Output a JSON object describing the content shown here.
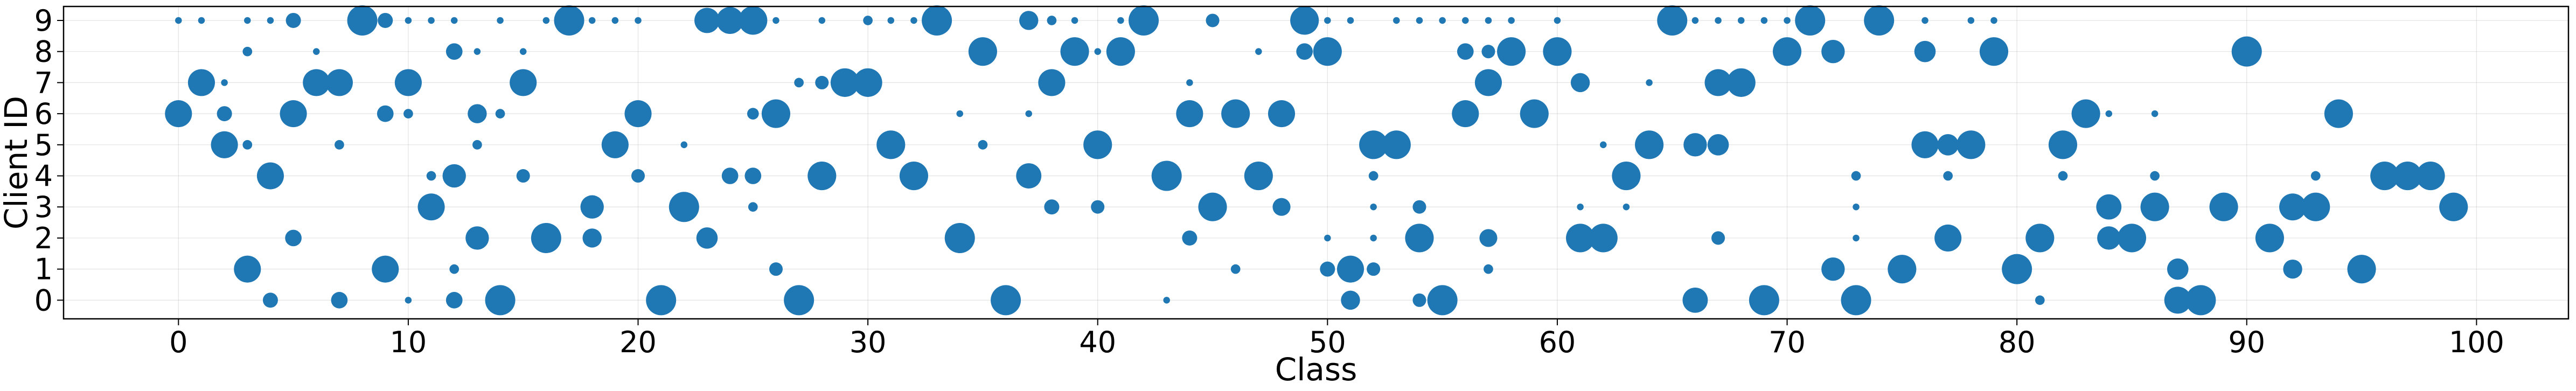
{
  "chart_data": {
    "type": "scatter",
    "title": "",
    "xlabel": "Class",
    "ylabel": "Client ID",
    "xlim": [
      -5,
      104
    ],
    "ylim": [
      -0.6,
      9.45
    ],
    "xticks": [
      0,
      10,
      20,
      30,
      40,
      50,
      60,
      70,
      80,
      90,
      100
    ],
    "yticks": [
      0,
      1,
      2,
      3,
      4,
      5,
      6,
      7,
      8,
      9
    ],
    "grid": true,
    "marker_color": "#1f77b4",
    "size_encoding": "marker area",
    "points": [
      {
        "x": 0,
        "y": 6,
        "s": 0.8
      },
      {
        "x": 0,
        "y": 9,
        "s": 0.05
      },
      {
        "x": 1,
        "y": 7,
        "s": 0.8
      },
      {
        "x": 1,
        "y": 9,
        "s": 0.05
      },
      {
        "x": 2,
        "y": 6,
        "s": 0.25
      },
      {
        "x": 2,
        "y": 5,
        "s": 0.8
      },
      {
        "x": 2,
        "y": 7,
        "s": 0.05
      },
      {
        "x": 3,
        "y": 1,
        "s": 0.8
      },
      {
        "x": 3,
        "y": 5,
        "s": 0.1
      },
      {
        "x": 3,
        "y": 8,
        "s": 0.1
      },
      {
        "x": 3,
        "y": 9,
        "s": 0.05
      },
      {
        "x": 4,
        "y": 4,
        "s": 0.8
      },
      {
        "x": 4,
        "y": 0,
        "s": 0.25
      },
      {
        "x": 4,
        "y": 9,
        "s": 0.05
      },
      {
        "x": 5,
        "y": 6,
        "s": 0.8
      },
      {
        "x": 5,
        "y": 2,
        "s": 0.3
      },
      {
        "x": 5,
        "y": 9,
        "s": 0.25
      },
      {
        "x": 6,
        "y": 7,
        "s": 0.8
      },
      {
        "x": 6,
        "y": 8,
        "s": 0.05
      },
      {
        "x": 7,
        "y": 7,
        "s": 0.8
      },
      {
        "x": 7,
        "y": 0,
        "s": 0.3
      },
      {
        "x": 7,
        "y": 5,
        "s": 0.1
      },
      {
        "x": 8,
        "y": 9,
        "s": 1.0
      },
      {
        "x": 9,
        "y": 1,
        "s": 0.8
      },
      {
        "x": 9,
        "y": 6,
        "s": 0.3
      },
      {
        "x": 9,
        "y": 9,
        "s": 0.25
      },
      {
        "x": 10,
        "y": 7,
        "s": 0.8
      },
      {
        "x": 10,
        "y": 6,
        "s": 0.1
      },
      {
        "x": 10,
        "y": 0,
        "s": 0.05
      },
      {
        "x": 10,
        "y": 9,
        "s": 0.05
      },
      {
        "x": 11,
        "y": 3,
        "s": 0.8
      },
      {
        "x": 11,
        "y": 4,
        "s": 0.1
      },
      {
        "x": 11,
        "y": 9,
        "s": 0.05
      },
      {
        "x": 12,
        "y": 4,
        "s": 0.6
      },
      {
        "x": 12,
        "y": 0,
        "s": 0.3
      },
      {
        "x": 12,
        "y": 8,
        "s": 0.3
      },
      {
        "x": 12,
        "y": 1,
        "s": 0.1
      },
      {
        "x": 12,
        "y": 9,
        "s": 0.05
      },
      {
        "x": 13,
        "y": 6,
        "s": 0.4
      },
      {
        "x": 13,
        "y": 2,
        "s": 0.6
      },
      {
        "x": 13,
        "y": 5,
        "s": 0.1
      },
      {
        "x": 13,
        "y": 8,
        "s": 0.05
      },
      {
        "x": 14,
        "y": 0,
        "s": 1.0
      },
      {
        "x": 14,
        "y": 6,
        "s": 0.1
      },
      {
        "x": 14,
        "y": 9,
        "s": 0.05
      },
      {
        "x": 15,
        "y": 7,
        "s": 0.8
      },
      {
        "x": 15,
        "y": 4,
        "s": 0.2
      },
      {
        "x": 15,
        "y": 8,
        "s": 0.05
      },
      {
        "x": 16,
        "y": 2,
        "s": 1.0
      },
      {
        "x": 16,
        "y": 9,
        "s": 0.05
      },
      {
        "x": 17,
        "y": 9,
        "s": 1.0
      },
      {
        "x": 18,
        "y": 3,
        "s": 0.6
      },
      {
        "x": 18,
        "y": 2,
        "s": 0.4
      },
      {
        "x": 18,
        "y": 9,
        "s": 0.05
      },
      {
        "x": 19,
        "y": 5,
        "s": 0.8
      },
      {
        "x": 19,
        "y": 9,
        "s": 0.05
      },
      {
        "x": 20,
        "y": 6,
        "s": 0.8
      },
      {
        "x": 20,
        "y": 4,
        "s": 0.2
      },
      {
        "x": 20,
        "y": 9,
        "s": 0.05
      },
      {
        "x": 21,
        "y": 0,
        "s": 1.0
      },
      {
        "x": 22,
        "y": 3,
        "s": 1.0
      },
      {
        "x": 22,
        "y": 5,
        "s": 0.05
      },
      {
        "x": 23,
        "y": 9,
        "s": 0.7
      },
      {
        "x": 23,
        "y": 2,
        "s": 0.5
      },
      {
        "x": 24,
        "y": 9,
        "s": 0.8
      },
      {
        "x": 24,
        "y": 4,
        "s": 0.3
      },
      {
        "x": 25,
        "y": 9,
        "s": 0.9
      },
      {
        "x": 25,
        "y": 4,
        "s": 0.3
      },
      {
        "x": 25,
        "y": 6,
        "s": 0.15
      },
      {
        "x": 25,
        "y": 3,
        "s": 0.1
      },
      {
        "x": 26,
        "y": 6,
        "s": 0.9
      },
      {
        "x": 26,
        "y": 1,
        "s": 0.2
      },
      {
        "x": 26,
        "y": 9,
        "s": 0.05
      },
      {
        "x": 27,
        "y": 0,
        "s": 1.0
      },
      {
        "x": 27,
        "y": 7,
        "s": 0.1
      },
      {
        "x": 28,
        "y": 4,
        "s": 0.9
      },
      {
        "x": 28,
        "y": 7,
        "s": 0.2
      },
      {
        "x": 28,
        "y": 9,
        "s": 0.05
      },
      {
        "x": 29,
        "y": 7,
        "s": 0.9
      },
      {
        "x": 30,
        "y": 7,
        "s": 0.9
      },
      {
        "x": 30,
        "y": 9,
        "s": 0.1
      },
      {
        "x": 31,
        "y": 5,
        "s": 0.9
      },
      {
        "x": 31,
        "y": 9,
        "s": 0.05
      },
      {
        "x": 32,
        "y": 4,
        "s": 0.9
      },
      {
        "x": 32,
        "y": 9,
        "s": 0.05
      },
      {
        "x": 33,
        "y": 9,
        "s": 1.0
      },
      {
        "x": 34,
        "y": 2,
        "s": 1.0
      },
      {
        "x": 34,
        "y": 6,
        "s": 0.05
      },
      {
        "x": 35,
        "y": 8,
        "s": 0.9
      },
      {
        "x": 35,
        "y": 5,
        "s": 0.1
      },
      {
        "x": 36,
        "y": 0,
        "s": 1.0
      },
      {
        "x": 37,
        "y": 4,
        "s": 0.7
      },
      {
        "x": 37,
        "y": 9,
        "s": 0.4
      },
      {
        "x": 37,
        "y": 6,
        "s": 0.05
      },
      {
        "x": 38,
        "y": 7,
        "s": 0.8
      },
      {
        "x": 38,
        "y": 3,
        "s": 0.25
      },
      {
        "x": 38,
        "y": 9,
        "s": 0.1
      },
      {
        "x": 39,
        "y": 8,
        "s": 0.9
      },
      {
        "x": 39,
        "y": 9,
        "s": 0.05
      },
      {
        "x": 40,
        "y": 5,
        "s": 0.9
      },
      {
        "x": 40,
        "y": 3,
        "s": 0.2
      },
      {
        "x": 40,
        "y": 8,
        "s": 0.05
      },
      {
        "x": 41,
        "y": 8,
        "s": 0.9
      },
      {
        "x": 41,
        "y": 9,
        "s": 0.05
      },
      {
        "x": 42,
        "y": 9,
        "s": 1.0
      },
      {
        "x": 43,
        "y": 4,
        "s": 1.0
      },
      {
        "x": 43,
        "y": 0,
        "s": 0.05
      },
      {
        "x": 44,
        "y": 6,
        "s": 0.8
      },
      {
        "x": 44,
        "y": 2,
        "s": 0.25
      },
      {
        "x": 44,
        "y": 7,
        "s": 0.05
      },
      {
        "x": 45,
        "y": 3,
        "s": 0.9
      },
      {
        "x": 45,
        "y": 9,
        "s": 0.2
      },
      {
        "x": 46,
        "y": 6,
        "s": 0.9
      },
      {
        "x": 46,
        "y": 1,
        "s": 0.1
      },
      {
        "x": 47,
        "y": 4,
        "s": 0.9
      },
      {
        "x": 47,
        "y": 8,
        "s": 0.05
      },
      {
        "x": 48,
        "y": 6,
        "s": 0.8
      },
      {
        "x": 48,
        "y": 3,
        "s": 0.35
      },
      {
        "x": 49,
        "y": 9,
        "s": 0.9
      },
      {
        "x": 49,
        "y": 8,
        "s": 0.3
      },
      {
        "x": 50,
        "y": 8,
        "s": 0.9
      },
      {
        "x": 50,
        "y": 1,
        "s": 0.25
      },
      {
        "x": 50,
        "y": 2,
        "s": 0.05
      },
      {
        "x": 50,
        "y": 9,
        "s": 0.05
      },
      {
        "x": 51,
        "y": 1,
        "s": 0.8
      },
      {
        "x": 51,
        "y": 0,
        "s": 0.4
      },
      {
        "x": 51,
        "y": 9,
        "s": 0.05
      },
      {
        "x": 52,
        "y": 5,
        "s": 0.9
      },
      {
        "x": 52,
        "y": 1,
        "s": 0.2
      },
      {
        "x": 52,
        "y": 4,
        "s": 0.1
      },
      {
        "x": 52,
        "y": 3,
        "s": 0.05
      },
      {
        "x": 52,
        "y": 2,
        "s": 0.05
      },
      {
        "x": 53,
        "y": 5,
        "s": 0.9
      },
      {
        "x": 53,
        "y": 9,
        "s": 0.05
      },
      {
        "x": 54,
        "y": 2,
        "s": 0.9
      },
      {
        "x": 54,
        "y": 0,
        "s": 0.2
      },
      {
        "x": 54,
        "y": 3,
        "s": 0.2
      },
      {
        "x": 54,
        "y": 9,
        "s": 0.05
      },
      {
        "x": 55,
        "y": 0,
        "s": 1.0
      },
      {
        "x": 55,
        "y": 9,
        "s": 0.05
      },
      {
        "x": 56,
        "y": 6,
        "s": 0.8
      },
      {
        "x": 56,
        "y": 8,
        "s": 0.3
      },
      {
        "x": 56,
        "y": 9,
        "s": 0.05
      },
      {
        "x": 57,
        "y": 7,
        "s": 0.8
      },
      {
        "x": 57,
        "y": 2,
        "s": 0.35
      },
      {
        "x": 57,
        "y": 8,
        "s": 0.2
      },
      {
        "x": 57,
        "y": 1,
        "s": 0.1
      },
      {
        "x": 57,
        "y": 9,
        "s": 0.05
      },
      {
        "x": 58,
        "y": 8,
        "s": 0.9
      },
      {
        "x": 58,
        "y": 9,
        "s": 0.05
      },
      {
        "x": 59,
        "y": 6,
        "s": 0.9
      },
      {
        "x": 60,
        "y": 8,
        "s": 0.9
      },
      {
        "x": 60,
        "y": 9,
        "s": 0.05
      },
      {
        "x": 61,
        "y": 2,
        "s": 0.9
      },
      {
        "x": 61,
        "y": 7,
        "s": 0.4
      },
      {
        "x": 61,
        "y": 3,
        "s": 0.05
      },
      {
        "x": 62,
        "y": 2,
        "s": 0.9
      },
      {
        "x": 62,
        "y": 5,
        "s": 0.05
      },
      {
        "x": 63,
        "y": 4,
        "s": 0.9
      },
      {
        "x": 63,
        "y": 3,
        "s": 0.05
      },
      {
        "x": 64,
        "y": 5,
        "s": 0.9
      },
      {
        "x": 64,
        "y": 7,
        "s": 0.05
      },
      {
        "x": 65,
        "y": 9,
        "s": 1.0
      },
      {
        "x": 66,
        "y": 0,
        "s": 0.7
      },
      {
        "x": 66,
        "y": 5,
        "s": 0.6
      },
      {
        "x": 66,
        "y": 9,
        "s": 0.05
      },
      {
        "x": 67,
        "y": 7,
        "s": 0.8
      },
      {
        "x": 67,
        "y": 5,
        "s": 0.5
      },
      {
        "x": 67,
        "y": 2,
        "s": 0.2
      },
      {
        "x": 67,
        "y": 9,
        "s": 0.05
      },
      {
        "x": 68,
        "y": 7,
        "s": 0.9
      },
      {
        "x": 68,
        "y": 9,
        "s": 0.05
      },
      {
        "x": 69,
        "y": 0,
        "s": 1.0
      },
      {
        "x": 69,
        "y": 9,
        "s": 0.05
      },
      {
        "x": 70,
        "y": 8,
        "s": 0.9
      },
      {
        "x": 70,
        "y": 9,
        "s": 0.05
      },
      {
        "x": 71,
        "y": 9,
        "s": 1.0
      },
      {
        "x": 72,
        "y": 8,
        "s": 0.6
      },
      {
        "x": 72,
        "y": 1,
        "s": 0.6
      },
      {
        "x": 73,
        "y": 0,
        "s": 1.0
      },
      {
        "x": 73,
        "y": 4,
        "s": 0.1
      },
      {
        "x": 73,
        "y": 3,
        "s": 0.05
      },
      {
        "x": 73,
        "y": 2,
        "s": 0.05
      },
      {
        "x": 74,
        "y": 9,
        "s": 1.0
      },
      {
        "x": 75,
        "y": 1,
        "s": 0.9
      },
      {
        "x": 76,
        "y": 5,
        "s": 0.8
      },
      {
        "x": 76,
        "y": 8,
        "s": 0.5
      },
      {
        "x": 76,
        "y": 9,
        "s": 0.05
      },
      {
        "x": 77,
        "y": 2,
        "s": 0.8
      },
      {
        "x": 77,
        "y": 5,
        "s": 0.5
      },
      {
        "x": 77,
        "y": 4,
        "s": 0.1
      },
      {
        "x": 78,
        "y": 5,
        "s": 0.9
      },
      {
        "x": 78,
        "y": 9,
        "s": 0.05
      },
      {
        "x": 79,
        "y": 8,
        "s": 0.9
      },
      {
        "x": 79,
        "y": 9,
        "s": 0.05
      },
      {
        "x": 80,
        "y": 1,
        "s": 1.0
      },
      {
        "x": 81,
        "y": 2,
        "s": 0.9
      },
      {
        "x": 81,
        "y": 0,
        "s": 0.1
      },
      {
        "x": 82,
        "y": 5,
        "s": 0.9
      },
      {
        "x": 82,
        "y": 4,
        "s": 0.1
      },
      {
        "x": 83,
        "y": 6,
        "s": 0.9
      },
      {
        "x": 84,
        "y": 3,
        "s": 0.7
      },
      {
        "x": 84,
        "y": 2,
        "s": 0.6
      },
      {
        "x": 84,
        "y": 6,
        "s": 0.05
      },
      {
        "x": 85,
        "y": 2,
        "s": 0.9
      },
      {
        "x": 86,
        "y": 3,
        "s": 0.9
      },
      {
        "x": 86,
        "y": 4,
        "s": 0.1
      },
      {
        "x": 86,
        "y": 6,
        "s": 0.05
      },
      {
        "x": 87,
        "y": 0,
        "s": 0.8
      },
      {
        "x": 87,
        "y": 1,
        "s": 0.5
      },
      {
        "x": 88,
        "y": 0,
        "s": 1.0
      },
      {
        "x": 89,
        "y": 3,
        "s": 0.9
      },
      {
        "x": 90,
        "y": 8,
        "s": 1.0
      },
      {
        "x": 91,
        "y": 2,
        "s": 0.9
      },
      {
        "x": 92,
        "y": 3,
        "s": 0.8
      },
      {
        "x": 92,
        "y": 1,
        "s": 0.4
      },
      {
        "x": 93,
        "y": 3,
        "s": 0.9
      },
      {
        "x": 93,
        "y": 4,
        "s": 0.1
      },
      {
        "x": 94,
        "y": 6,
        "s": 0.9
      },
      {
        "x": 95,
        "y": 1,
        "s": 0.9
      },
      {
        "x": 96,
        "y": 4,
        "s": 0.9
      },
      {
        "x": 97,
        "y": 4,
        "s": 0.9
      },
      {
        "x": 98,
        "y": 4,
        "s": 0.9
      },
      {
        "x": 99,
        "y": 3,
        "s": 0.9
      }
    ]
  }
}
